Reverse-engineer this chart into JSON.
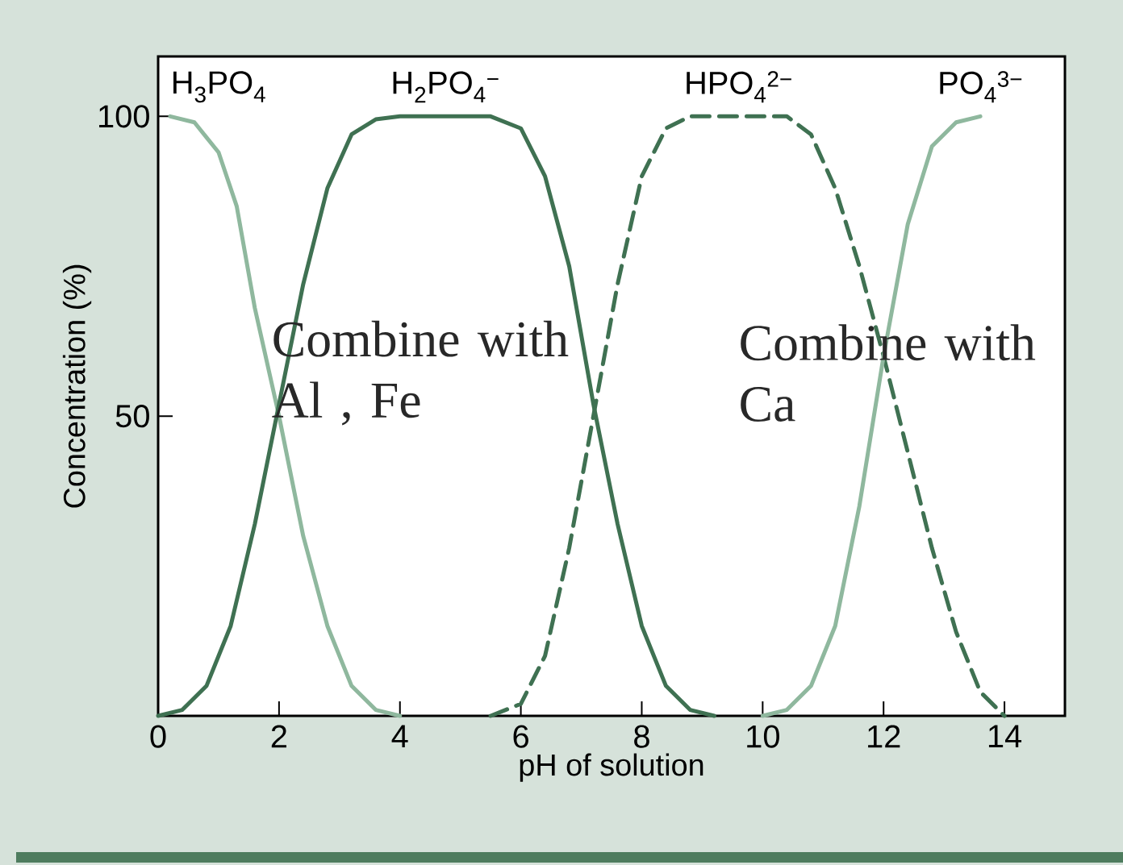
{
  "chart_data": {
    "type": "line",
    "xlabel": "pH of solution",
    "ylabel": "Concentration (%)",
    "xlim": [
      0,
      15
    ],
    "ylim": [
      0,
      110
    ],
    "xticks": [
      0,
      2,
      4,
      6,
      8,
      10,
      12,
      14
    ],
    "yticks": [
      50,
      100
    ],
    "grid": false,
    "legend": false,
    "marker": "none",
    "line_style": "solid",
    "series": [
      {
        "name": "H$_{3}$PO$_{4}$",
        "color": "#8fb89e",
        "x": [
          0.2,
          0.6,
          1.0,
          1.3,
          1.6,
          2.0,
          2.4,
          2.8,
          3.2,
          3.6,
          4.0
        ],
        "values": [
          100,
          99,
          94,
          85,
          68,
          50,
          30,
          15,
          5,
          1,
          0
        ]
      },
      {
        "name": "H$_{2}$PO$_{4}$$^{−}$",
        "color": "#3f7152",
        "x": [
          0,
          0.4,
          0.8,
          1.2,
          1.6,
          2.0,
          2.4,
          2.8,
          3.2,
          3.6,
          4.0,
          5.5,
          6.0,
          6.4,
          6.8,
          7.2,
          7.6,
          8.0,
          8.4,
          8.8,
          9.2
        ],
        "values": [
          0,
          1,
          5,
          15,
          32,
          52,
          72,
          88,
          97,
          99.5,
          100,
          100,
          98,
          90,
          75,
          52,
          32,
          15,
          5,
          1,
          0
        ]
      },
      {
        "name": "HPO$_{4}$$^{2−}$",
        "color": "#3f7152",
        "line_style": "dashed",
        "x": [
          5.5,
          6.0,
          6.4,
          6.8,
          7.2,
          7.6,
          8.0,
          8.4,
          8.8,
          10.4,
          10.8,
          11.2,
          11.6,
          12.0,
          12.4,
          12.8,
          13.2,
          13.6,
          14.0
        ],
        "values": [
          0,
          2,
          10,
          28,
          50,
          72,
          90,
          98,
          100,
          100,
          97,
          88,
          75,
          60,
          44,
          28,
          14,
          4,
          0
        ]
      },
      {
        "name": "PO$_{4}$$^{3−}$",
        "color": "#8fb89e",
        "x": [
          10.0,
          10.4,
          10.8,
          11.2,
          11.6,
          12.0,
          12.4,
          12.8,
          13.2,
          13.6
        ],
        "values": [
          0,
          1,
          5,
          15,
          35,
          60,
          82,
          95,
          99,
          100
        ]
      }
    ],
    "annotations": [
      "Combine with Al , Fe",
      "Combine with Ca"
    ]
  }
}
